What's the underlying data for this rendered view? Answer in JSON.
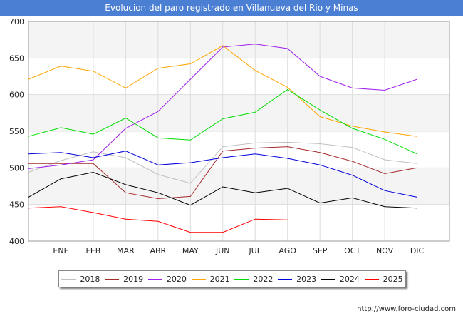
{
  "header": {
    "title": "Evolucion del paro registrado en Villanueva del Río y Minas"
  },
  "footer": {
    "source": "http://www.foro-ciudad.com"
  },
  "chart_data": {
    "type": "line",
    "title": "Evolucion del paro registrado en Villanueva del Río y Minas",
    "xlabel": "",
    "ylabel": "",
    "categories": [
      "",
      "ENE",
      "FEB",
      "MAR",
      "ABR",
      "MAY",
      "JUN",
      "JUL",
      "AGO",
      "SEP",
      "OCT",
      "NOV",
      "DIC"
    ],
    "ylim": [
      400,
      700
    ],
    "yticks": [
      400,
      450,
      500,
      550,
      600,
      650,
      700
    ],
    "grid": true,
    "legend_position": "bottom",
    "series": [
      {
        "name": "2018",
        "color": "#c0c0c0",
        "values": [
          494,
          510,
          522,
          514,
          491,
          479,
          529,
          534,
          535,
          533,
          528,
          511,
          506
        ]
      },
      {
        "name": "2019",
        "color": "#a52a2a",
        "values": [
          506,
          506,
          506,
          466,
          458,
          461,
          523,
          527,
          529,
          521,
          509,
          492,
          500
        ]
      },
      {
        "name": "2020",
        "color": "#a020f0",
        "values": [
          499,
          504,
          511,
          554,
          577,
          621,
          665,
          669,
          663,
          625,
          609,
          606,
          621
        ]
      },
      {
        "name": "2021",
        "color": "#ffa500",
        "values": [
          621,
          639,
          632,
          609,
          636,
          642,
          667,
          633,
          610,
          570,
          557,
          549,
          543
        ]
      },
      {
        "name": "2022",
        "color": "#00dd00",
        "values": [
          543,
          555,
          546,
          568,
          541,
          538,
          567,
          576,
          607,
          579,
          554,
          539,
          519
        ]
      },
      {
        "name": "2023",
        "color": "#0000dd",
        "values": [
          519,
          521,
          514,
          523,
          504,
          507,
          514,
          519,
          513,
          504,
          490,
          469,
          460
        ]
      },
      {
        "name": "2024",
        "color": "#000000",
        "values": [
          460,
          485,
          494,
          477,
          466,
          449,
          474,
          466,
          472,
          452,
          459,
          447,
          445
        ]
      },
      {
        "name": "2025",
        "color": "#ff0000",
        "values": [
          445,
          447,
          439,
          430,
          427,
          412,
          412,
          430,
          429,
          null,
          null,
          null,
          null
        ]
      }
    ]
  }
}
